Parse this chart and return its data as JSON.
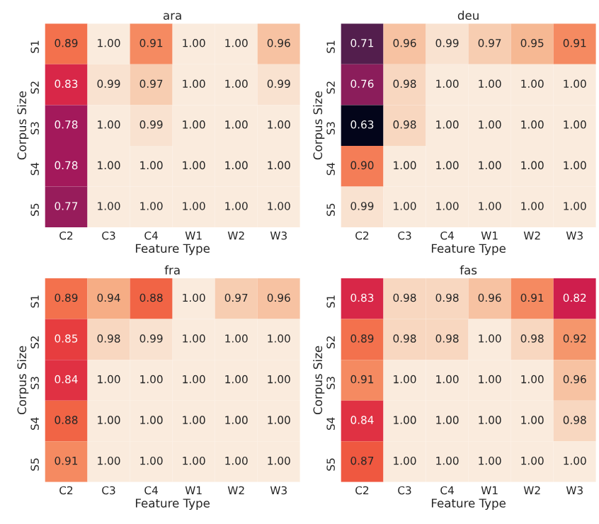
{
  "chart_data": [
    {
      "type": "heatmap",
      "data_labels": true,
      "title": "ara",
      "xlabel": "Feature Type",
      "ylabel": "Corpus Size",
      "categories": [
        "C2",
        "C3",
        "C4",
        "W1",
        "W2",
        "W3"
      ],
      "y_categories": [
        "S1",
        "S2",
        "S3",
        "S4",
        "S5"
      ],
      "cells": [
        [
          0.89,
          1.0,
          0.91,
          1.0,
          1.0,
          0.96
        ],
        [
          0.83,
          0.99,
          0.97,
          1.0,
          1.0,
          0.99
        ],
        [
          0.78,
          1.0,
          0.99,
          1.0,
          1.0,
          1.0
        ],
        [
          0.78,
          1.0,
          1.0,
          1.0,
          1.0,
          1.0
        ],
        [
          0.77,
          1.0,
          1.0,
          1.0,
          1.0,
          1.0
        ]
      ],
      "cell_labels": [
        [
          "0.89",
          "1.00",
          "0.91",
          "1.00",
          "1.00",
          "0.96"
        ],
        [
          "0.83",
          "0.99",
          "0.97",
          "1.00",
          "1.00",
          "0.99"
        ],
        [
          "0.78",
          "1.00",
          "0.99",
          "1.00",
          "1.00",
          "1.00"
        ],
        [
          "0.78",
          "1.00",
          "1.00",
          "1.00",
          "1.00",
          "1.00"
        ],
        [
          "0.77",
          "1.00",
          "1.00",
          "1.00",
          "1.00",
          "1.00"
        ]
      ]
    },
    {
      "type": "heatmap",
      "data_labels": true,
      "title": "deu",
      "xlabel": "Feature Type",
      "ylabel": "Corpus Size",
      "categories": [
        "C2",
        "C3",
        "C4",
        "W1",
        "W2",
        "W3"
      ],
      "y_categories": [
        "S1",
        "S2",
        "S3",
        "S4",
        "S5"
      ],
      "cells": [
        [
          0.71,
          0.96,
          0.99,
          0.97,
          0.95,
          0.91
        ],
        [
          0.76,
          0.98,
          1.0,
          1.0,
          1.0,
          1.0
        ],
        [
          0.63,
          0.98,
          1.0,
          1.0,
          1.0,
          1.0
        ],
        [
          0.9,
          1.0,
          1.0,
          1.0,
          1.0,
          1.0
        ],
        [
          0.99,
          1.0,
          1.0,
          1.0,
          1.0,
          1.0
        ]
      ],
      "cell_labels": [
        [
          "0.71",
          "0.96",
          "0.99",
          "0.97",
          "0.95",
          "0.91"
        ],
        [
          "0.76",
          "0.98",
          "1.00",
          "1.00",
          "1.00",
          "1.00"
        ],
        [
          "0.63",
          "0.98",
          "1.00",
          "1.00",
          "1.00",
          "1.00"
        ],
        [
          "0.90",
          "1.00",
          "1.00",
          "1.00",
          "1.00",
          "1.00"
        ],
        [
          "0.99",
          "1.00",
          "1.00",
          "1.00",
          "1.00",
          "1.00"
        ]
      ]
    },
    {
      "type": "heatmap",
      "data_labels": true,
      "title": "fra",
      "xlabel": "Feature Type",
      "ylabel": "Corpus Size",
      "categories": [
        "C2",
        "C3",
        "C4",
        "W1",
        "W2",
        "W3"
      ],
      "y_categories": [
        "S1",
        "S2",
        "S3",
        "S4",
        "S5"
      ],
      "cells": [
        [
          0.89,
          0.94,
          0.88,
          1.0,
          0.97,
          0.96
        ],
        [
          0.85,
          0.98,
          0.99,
          1.0,
          1.0,
          1.0
        ],
        [
          0.84,
          1.0,
          1.0,
          1.0,
          1.0,
          1.0
        ],
        [
          0.88,
          1.0,
          1.0,
          1.0,
          1.0,
          1.0
        ],
        [
          0.91,
          1.0,
          1.0,
          1.0,
          1.0,
          1.0
        ]
      ],
      "cell_labels": [
        [
          "0.89",
          "0.94",
          "0.88",
          "1.00",
          "0.97",
          "0.96"
        ],
        [
          "0.85",
          "0.98",
          "0.99",
          "1.00",
          "1.00",
          "1.00"
        ],
        [
          "0.84",
          "1.00",
          "1.00",
          "1.00",
          "1.00",
          "1.00"
        ],
        [
          "0.88",
          "1.00",
          "1.00",
          "1.00",
          "1.00",
          "1.00"
        ],
        [
          "0.91",
          "1.00",
          "1.00",
          "1.00",
          "1.00",
          "1.00"
        ]
      ]
    },
    {
      "type": "heatmap",
      "data_labels": true,
      "title": "fas",
      "xlabel": "Feature Type",
      "ylabel": "Corpus Size",
      "categories": [
        "C2",
        "C3",
        "C4",
        "W1",
        "W2",
        "W3"
      ],
      "y_categories": [
        "S1",
        "S2",
        "S3",
        "S4",
        "S5"
      ],
      "cells": [
        [
          0.83,
          0.98,
          0.98,
          0.96,
          0.91,
          0.82
        ],
        [
          0.89,
          0.98,
          0.98,
          1.0,
          0.98,
          0.92
        ],
        [
          0.91,
          1.0,
          1.0,
          1.0,
          1.0,
          0.96
        ],
        [
          0.84,
          1.0,
          1.0,
          1.0,
          1.0,
          0.98
        ],
        [
          0.87,
          1.0,
          1.0,
          1.0,
          1.0,
          1.0
        ]
      ],
      "cell_labels": [
        [
          "0.83",
          "0.98",
          "0.98",
          "0.96",
          "0.91",
          "0.82"
        ],
        [
          "0.89",
          "0.98",
          "0.98",
          "1.00",
          "0.98",
          "0.92"
        ],
        [
          "0.91",
          "1.00",
          "1.00",
          "1.00",
          "1.00",
          "0.96"
        ],
        [
          "0.84",
          "1.00",
          "1.00",
          "1.00",
          "1.00",
          "0.98"
        ],
        [
          "0.87",
          "1.00",
          "1.00",
          "1.00",
          "1.00",
          "1.00"
        ]
      ]
    }
  ]
}
